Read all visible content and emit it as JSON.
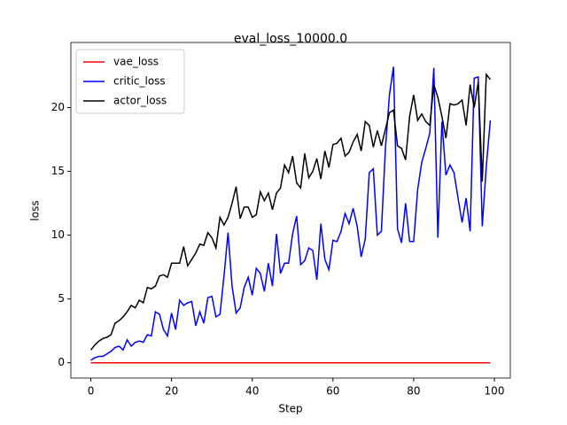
{
  "chart_data": {
    "type": "line",
    "title": "eval_loss_10000.0",
    "x_label": "Step",
    "y_label": "loss",
    "x": [
      0,
      1,
      2,
      3,
      4,
      5,
      6,
      7,
      8,
      9,
      10,
      11,
      12,
      13,
      14,
      15,
      16,
      17,
      18,
      19,
      20,
      21,
      22,
      23,
      24,
      25,
      26,
      27,
      28,
      29,
      30,
      31,
      32,
      33,
      34,
      35,
      36,
      37,
      38,
      39,
      40,
      41,
      42,
      43,
      44,
      45,
      46,
      47,
      48,
      49,
      50,
      51,
      52,
      53,
      54,
      55,
      56,
      57,
      58,
      59,
      60,
      61,
      62,
      63,
      64,
      65,
      66,
      67,
      68,
      69,
      70,
      71,
      72,
      73,
      74,
      75,
      76,
      77,
      78,
      79,
      80,
      81,
      82,
      83,
      84,
      85,
      86,
      87,
      88,
      89,
      90,
      91,
      92,
      93,
      94,
      95,
      96,
      97,
      98,
      99
    ],
    "series": [
      {
        "name": "vae_loss",
        "color": "#ff0000",
        "values": [
          0,
          0,
          0,
          0,
          0,
          0,
          0,
          0,
          0,
          0,
          0,
          0,
          0,
          0,
          0,
          0,
          0,
          0,
          0,
          0,
          0,
          0,
          0,
          0,
          0,
          0,
          0,
          0,
          0,
          0,
          0,
          0,
          0,
          0,
          0,
          0,
          0,
          0,
          0,
          0,
          0,
          0,
          0,
          0,
          0,
          0,
          0,
          0,
          0,
          0,
          0,
          0,
          0,
          0,
          0,
          0,
          0,
          0,
          0,
          0,
          0,
          0,
          0,
          0,
          0,
          0,
          0,
          0,
          0,
          0,
          0,
          0,
          0,
          0,
          0,
          0,
          0,
          0,
          0,
          0,
          0,
          0,
          0,
          0,
          0,
          0,
          0,
          0,
          0,
          0,
          0,
          0,
          0,
          0,
          0,
          0,
          0,
          0,
          0,
          0
        ]
      },
      {
        "name": "critic_loss",
        "color": "#0000ff",
        "values": [
          0.2,
          0.4,
          0.5,
          0.5,
          0.7,
          0.9,
          1.2,
          1.3,
          1.0,
          1.8,
          1.3,
          1.6,
          1.7,
          1.6,
          2.2,
          2.1,
          4.0,
          3.8,
          2.6,
          2.1,
          3.9,
          2.6,
          4.9,
          4.5,
          4.7,
          4.8,
          2.9,
          4.0,
          3.1,
          5.1,
          5.2,
          3.6,
          3.8,
          6.8,
          10.2,
          6.0,
          3.9,
          4.3,
          5.9,
          6.7,
          5.3,
          7.4,
          7.0,
          5.6,
          7.8,
          6.0,
          10.1,
          7.0,
          7.8,
          7.8,
          10.1,
          11.5,
          7.7,
          8.0,
          9.0,
          8.8,
          6.5,
          10.9,
          8.1,
          7.3,
          9.6,
          9.5,
          10.3,
          11.7,
          10.9,
          12.1,
          10.7,
          8.3,
          9.7,
          14.9,
          15.2,
          10.0,
          10.3,
          16.8,
          21.0,
          23.2,
          10.5,
          9.4,
          12.5,
          9.5,
          9.5,
          13.6,
          15.7,
          16.8,
          18.0,
          23.1,
          9.8,
          18.9,
          14.7,
          15.5,
          14.9,
          12.9,
          11.0,
          12.9,
          10.3,
          22.3,
          22.4,
          10.7,
          15.4,
          19.0
        ]
      },
      {
        "name": "actor_loss",
        "color": "#000000",
        "values": [
          1.0,
          1.4,
          1.7,
          1.9,
          2.0,
          2.2,
          3.1,
          3.3,
          3.6,
          4.0,
          4.5,
          4.3,
          4.9,
          4.7,
          5.9,
          5.8,
          6.0,
          6.8,
          6.9,
          6.7,
          7.8,
          7.8,
          7.8,
          9.1,
          7.6,
          8.1,
          8.6,
          9.3,
          9.2,
          10.2,
          9.8,
          9.0,
          11.4,
          10.8,
          11.4,
          12.5,
          13.8,
          11.3,
          12.2,
          12.2,
          11.4,
          11.6,
          13.4,
          12.7,
          13.3,
          12.0,
          13.3,
          13.7,
          15.5,
          14.9,
          16.2,
          14.1,
          13.7,
          16.4,
          14.5,
          15.0,
          16.0,
          14.4,
          16.6,
          15.3,
          17.1,
          17.2,
          17.6,
          16.2,
          16.5,
          17.3,
          17.9,
          16.6,
          18.9,
          18.6,
          16.9,
          18.2,
          17.0,
          18.3,
          19.6,
          19.8,
          17.0,
          16.8,
          15.9,
          19.3,
          21.0,
          19.0,
          19.5,
          18.9,
          18.6,
          21.8,
          20.8,
          19.3,
          17.6,
          20.3,
          20.2,
          20.3,
          20.6,
          18.6,
          21.8,
          20.0,
          22.0,
          14.2,
          22.6,
          22.2
        ]
      }
    ],
    "xlim": [
      -4.95,
      103.95
    ],
    "ylim": [
      -1.2,
      25.1
    ],
    "xticks": [
      0,
      20,
      40,
      60,
      80,
      100
    ],
    "yticks": [
      0,
      5,
      10,
      15,
      20
    ],
    "legend": "upper left"
  }
}
